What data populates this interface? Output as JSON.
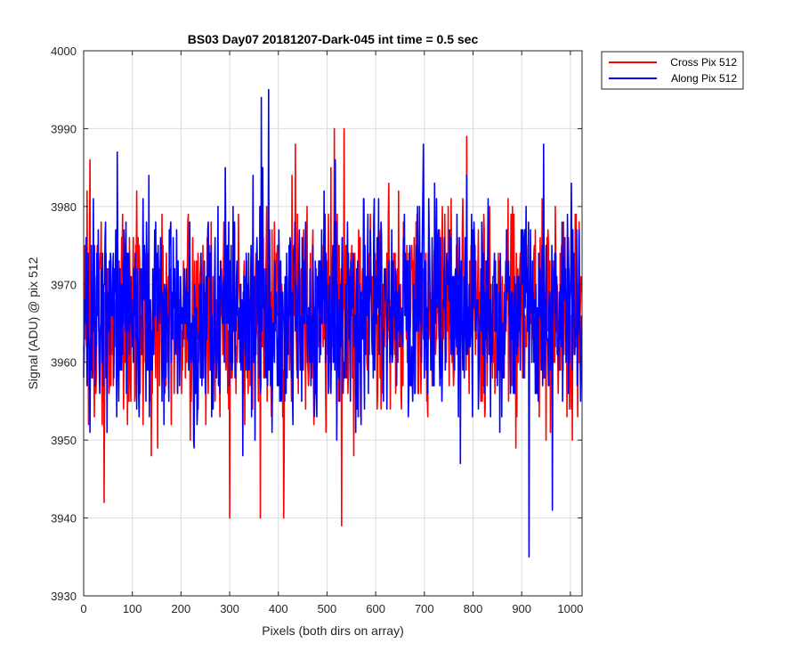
{
  "chart_data": {
    "type": "line",
    "title": "BS03 Day07 20181207-Dark-045 int time = 0.5 sec",
    "xlabel": "Pixels (both dirs on array)",
    "ylabel": "Signal (ADU) @ pix 512",
    "xlim": [
      0,
      1024
    ],
    "ylim": [
      3930,
      4000
    ],
    "xticks": [
      0,
      100,
      200,
      300,
      400,
      500,
      600,
      700,
      800,
      900,
      1000
    ],
    "yticks": [
      3930,
      3940,
      3950,
      3960,
      3970,
      3980,
      3990,
      4000
    ],
    "grid": true,
    "legend_position": "outside top-right",
    "series": [
      {
        "name": "Cross Pix 512",
        "color": "#ff0000",
        "mean": 3966,
        "noise_std": 7,
        "min": 3939,
        "max": 3990
      },
      {
        "name": "Along Pix 512",
        "color": "#0000ff",
        "mean": 3966,
        "noise_std": 7,
        "min": 3935,
        "max": 3995
      }
    ],
    "notable_points": {
      "cross": [
        {
          "x": 42,
          "y": 3942
        },
        {
          "x": 300,
          "y": 3940
        },
        {
          "x": 363,
          "y": 3940
        },
        {
          "x": 411,
          "y": 3940
        },
        {
          "x": 530,
          "y": 3939
        },
        {
          "x": 435,
          "y": 3988
        },
        {
          "x": 515,
          "y": 3990
        },
        {
          "x": 535,
          "y": 3990
        },
        {
          "x": 787,
          "y": 3989
        }
      ],
      "along": [
        {
          "x": 365,
          "y": 3994
        },
        {
          "x": 380,
          "y": 3995
        },
        {
          "x": 915,
          "y": 3935
        },
        {
          "x": 963,
          "y": 3941
        },
        {
          "x": 945,
          "y": 3988
        }
      ]
    }
  }
}
